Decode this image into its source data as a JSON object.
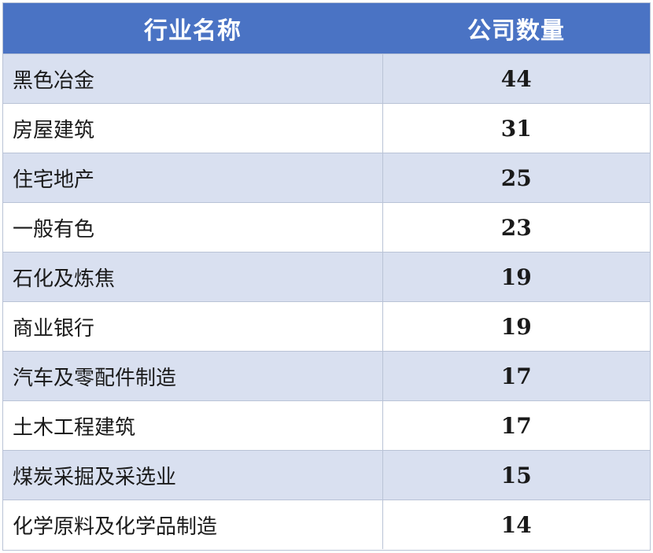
{
  "table": {
    "headers": [
      "行业名称",
      "公司数量"
    ],
    "rows": [
      {
        "industry": "黑色冶金",
        "count": "44"
      },
      {
        "industry": "房屋建筑",
        "count": "31"
      },
      {
        "industry": "住宅地产",
        "count": "25"
      },
      {
        "industry": "一般有色",
        "count": "23"
      },
      {
        "industry": "石化及炼焦",
        "count": "19"
      },
      {
        "industry": "商业银行",
        "count": "19"
      },
      {
        "industry": "汽车及零配件制造",
        "count": "17"
      },
      {
        "industry": "土木工程建筑",
        "count": "17"
      },
      {
        "industry": "煤炭采掘及采选业",
        "count": "15"
      },
      {
        "industry": "化学原料及化学品制造",
        "count": "14"
      }
    ]
  },
  "colors": {
    "header_bg": "#4a73c4",
    "header_text": "#ffffff",
    "row_odd_bg": "#d9e0f0",
    "row_even_bg": "#ffffff",
    "border": "#b9c3d6"
  }
}
